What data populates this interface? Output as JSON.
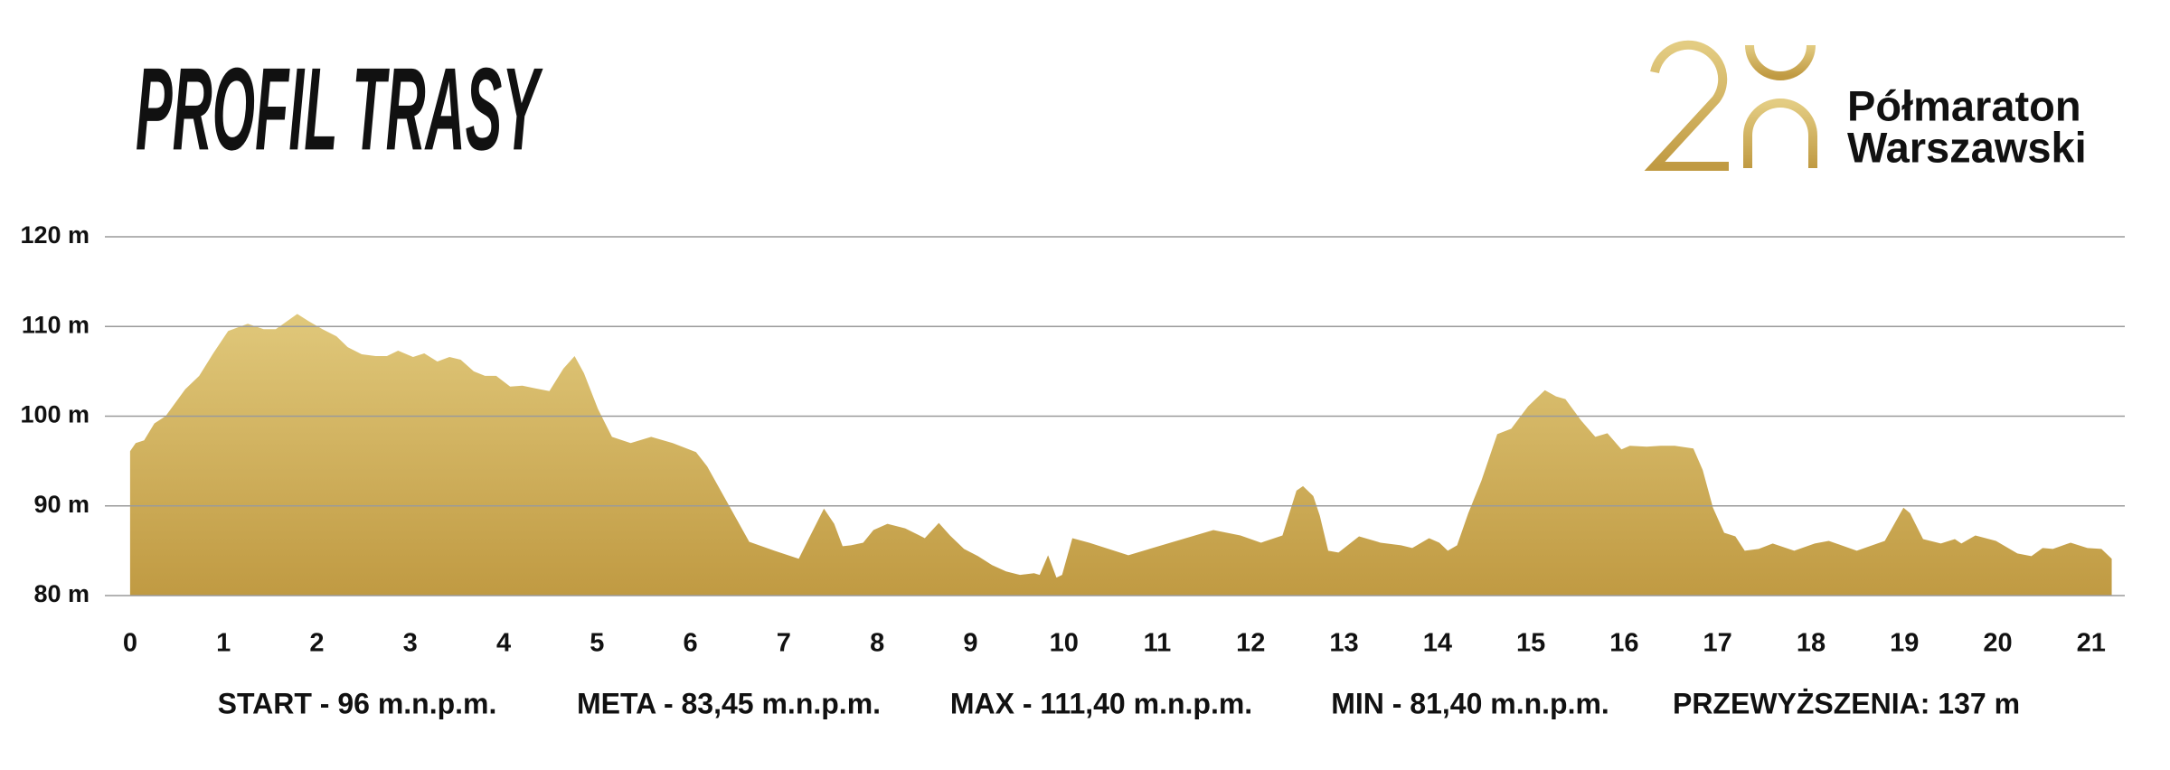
{
  "chart_data": {
    "type": "area",
    "title": "PROFIL TRASY",
    "x": [
      0,
      0.06,
      0.15,
      0.26,
      0.38,
      0.59,
      0.74,
      0.89,
      1.05,
      1.26,
      1.43,
      1.56,
      1.79,
      1.91,
      2.06,
      2.21,
      2.33,
      2.48,
      2.63,
      2.75,
      2.87,
      3.03,
      3.15,
      3.29,
      3.42,
      3.54,
      3.68,
      3.8,
      3.92,
      4.07,
      4.2,
      4.34,
      4.49,
      4.64,
      4.76,
      4.86,
      5.01,
      5.16,
      5.36,
      5.58,
      5.81,
      6.06,
      6.18,
      6.63,
      6.9,
      7.16,
      7.27,
      7.43,
      7.54,
      7.63,
      7.72,
      7.85,
      7.96,
      8.11,
      8.3,
      8.51,
      8.66,
      8.78,
      8.93,
      9.08,
      9.23,
      9.38,
      9.53,
      9.68,
      9.74,
      9.83,
      9.92,
      9.98,
      10.09,
      10.27,
      10.69,
      11.14,
      11.6,
      11.89,
      12.11,
      12.34,
      12.49,
      12.56,
      12.67,
      12.74,
      12.83,
      12.94,
      13.16,
      13.39,
      13.61,
      13.73,
      13.91,
      14.02,
      14.11,
      14.21,
      14.33,
      14.47,
      14.64,
      14.79,
      14.97,
      15.15,
      15.27,
      15.37,
      15.54,
      15.69,
      15.82,
      15.97,
      16.06,
      16.24,
      16.39,
      16.54,
      16.74,
      16.84,
      16.95,
      17.07,
      17.19,
      17.29,
      17.44,
      17.59,
      17.82,
      18.04,
      18.19,
      18.49,
      18.79,
      18.99,
      19.06,
      19.2,
      19.39,
      19.54,
      19.61,
      19.76,
      19.98,
      20.21,
      20.36,
      20.48,
      20.59,
      20.78,
      20.96,
      21.11,
      21.22
    ],
    "values": [
      96.1,
      97,
      97.3,
      99.2,
      100,
      103,
      104.5,
      107,
      109.5,
      110.3,
      109.7,
      109.7,
      111.4,
      110.6,
      109.7,
      108.9,
      107.7,
      106.9,
      106.7,
      106.7,
      107.3,
      106.6,
      107,
      106.1,
      106.6,
      106.3,
      105,
      104.5,
      104.5,
      103.3,
      103.4,
      103.1,
      102.8,
      105.3,
      106.7,
      104.8,
      100.8,
      97.7,
      97,
      97.7,
      97,
      96,
      94.4,
      86,
      85,
      84.1,
      86.4,
      89.7,
      88,
      85.5,
      85.6,
      85.9,
      87.3,
      88,
      87.5,
      86.4,
      88.1,
      86.7,
      85.2,
      84.4,
      83.4,
      82.7,
      82.3,
      82.5,
      82.3,
      84.5,
      82,
      82.3,
      86.4,
      85.9,
      84.5,
      85.9,
      87.3,
      86.7,
      85.9,
      86.7,
      91.7,
      92.2,
      91.1,
      88.9,
      85,
      84.8,
      86.6,
      85.9,
      85.6,
      85.3,
      86.4,
      85.9,
      85,
      85.6,
      89.2,
      92.8,
      98,
      98.6,
      101.1,
      102.9,
      102.2,
      101.9,
      99.5,
      97.7,
      98.1,
      96.3,
      96.7,
      96.6,
      96.7,
      96.7,
      96.4,
      94,
      89.8,
      87,
      86.6,
      85,
      85.2,
      85.8,
      85,
      85.8,
      86.1,
      85,
      86.1,
      89.8,
      89.2,
      86.3,
      85.8,
      86.3,
      85.8,
      86.7,
      86.1,
      84.7,
      84.4,
      85.3,
      85.2,
      85.9,
      85.3,
      85.2,
      84.1
    ],
    "color_top": "#e1c97c",
    "color_bottom": "#c09a42",
    "xlim": [
      -0.27,
      21.36
    ],
    "xticks": [
      0,
      1,
      2,
      3,
      4,
      5,
      6,
      7,
      8,
      9,
      10,
      11,
      12,
      13,
      14,
      15,
      16,
      17,
      18,
      19,
      20,
      21
    ],
    "ylim": [
      80,
      120
    ],
    "yticks": [
      {
        "value": 80,
        "label": "80 m"
      },
      {
        "value": 90,
        "label": "90 m"
      },
      {
        "value": 100,
        "label": "100 m"
      },
      {
        "value": 110,
        "label": "110 m"
      },
      {
        "value": 120,
        "label": "120 m"
      }
    ],
    "grid": true,
    "annotations": [
      "START - 96 m.n.p.m.",
      "META - 83,45 m.n.p.m.",
      "MAX - 111,40 m.n.p.m.",
      "MIN - 81,40 m.n.p.m.",
      "PRZEWYŻSZENIA: 137 m"
    ]
  },
  "logo": {
    "line1": "Półmaraton",
    "line2": "Warszawski"
  }
}
